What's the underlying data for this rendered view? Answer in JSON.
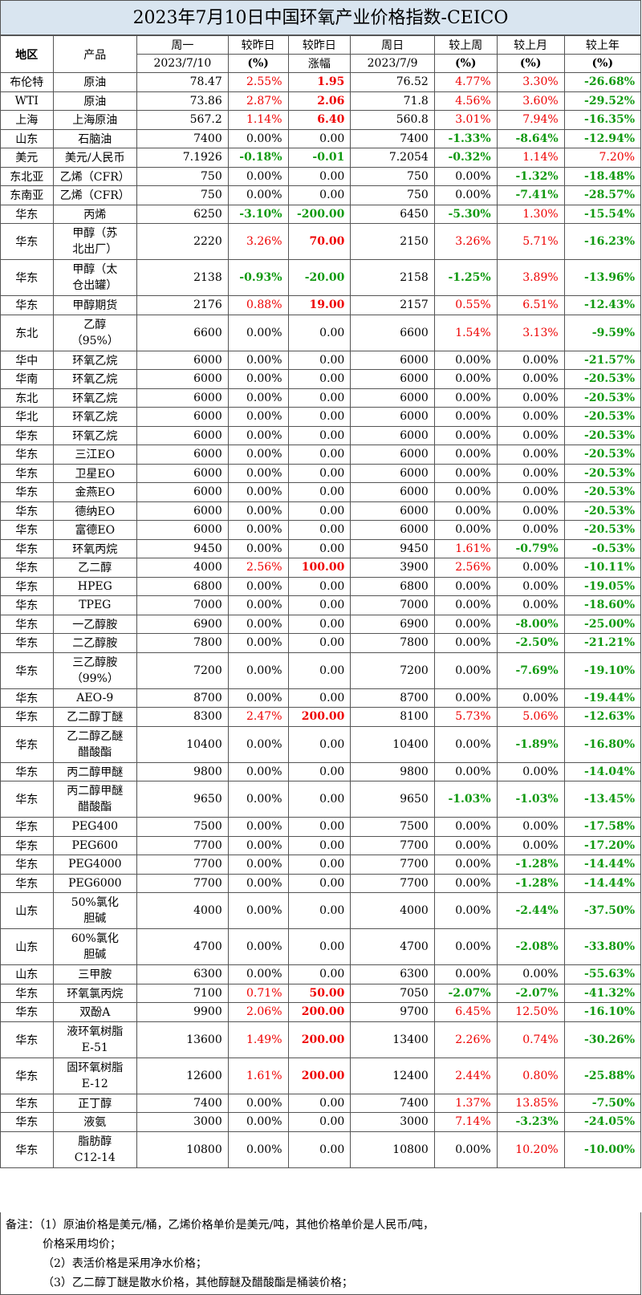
{
  "title": "2023年7月10日中国环氧产业价格指数-CEICO",
  "header": {
    "region": "地区",
    "product": "产品",
    "c1a": "周一",
    "c1b": "2023/7/10",
    "c2a": "较昨日",
    "c2b": "(%)",
    "c3a": "较昨日",
    "c3b": "涨幅",
    "c4a": "周日",
    "c4b": "2023/7/9",
    "c5a": "较上周",
    "c5b": "(%)",
    "c6a": "较上月",
    "c6b": "(%)",
    "c7a": "较上年",
    "c7b": "(%)"
  },
  "rows": [
    {
      "region": "布伦特",
      "product": "原油",
      "mon": "78.47",
      "dpct": "2.55%",
      "dchg": "1.95",
      "sun": "76.52",
      "wk": "4.77%",
      "mo": "3.30%",
      "yr": "-26.68%"
    },
    {
      "region": "WTI",
      "product": "原油",
      "mon": "73.86",
      "dpct": "2.87%",
      "dchg": "2.06",
      "sun": "71.8",
      "wk": "4.56%",
      "mo": "3.60%",
      "yr": "-29.52%"
    },
    {
      "region": "上海",
      "product": "上海原油",
      "mon": "567.2",
      "dpct": "1.14%",
      "dchg": "6.40",
      "sun": "560.8",
      "wk": "3.01%",
      "mo": "7.94%",
      "yr": "-16.35%"
    },
    {
      "region": "山东",
      "product": "石脑油",
      "mon": "7400",
      "dpct": "0.00%",
      "dchg": "0.00",
      "sun": "7400",
      "wk": "-1.33%",
      "mo": "-8.64%",
      "yr": "-12.94%"
    },
    {
      "region": "美元",
      "product": "美元/人民币",
      "mon": "7.1926",
      "dpct": "-0.18%",
      "dchg": "-0.01",
      "sun": "7.2054",
      "wk": "-0.32%",
      "mo": "1.14%",
      "yr": "7.20%"
    },
    {
      "region": "东北亚",
      "product": "乙烯（CFR）",
      "mon": "750",
      "dpct": "0.00%",
      "dchg": "0.00",
      "sun": "750",
      "wk": "0.00%",
      "mo": "-1.32%",
      "yr": "-18.48%"
    },
    {
      "region": "东南亚",
      "product": "乙烯（CFR）",
      "mon": "750",
      "dpct": "0.00%",
      "dchg": "0.00",
      "sun": "750",
      "wk": "0.00%",
      "mo": "-7.41%",
      "yr": "-28.57%"
    },
    {
      "region": "华东",
      "product": "丙烯",
      "mon": "6250",
      "dpct": "-3.10%",
      "dchg": "-200.00",
      "sun": "6450",
      "wk": "-5.30%",
      "mo": "1.30%",
      "yr": "-15.54%"
    },
    {
      "region": "华东",
      "product": "甲醇（苏北出厂）",
      "mon": "2220",
      "dpct": "3.26%",
      "dchg": "70.00",
      "sun": "2150",
      "wk": "3.26%",
      "mo": "5.71%",
      "yr": "-16.23%"
    },
    {
      "region": "华东",
      "product": "甲醇（太仓出罐）",
      "mon": "2138",
      "dpct": "-0.93%",
      "dchg": "-20.00",
      "sun": "2158",
      "wk": "-1.25%",
      "mo": "3.89%",
      "yr": "-13.96%"
    },
    {
      "region": "华东",
      "product": "甲醇期货",
      "mon": "2176",
      "dpct": "0.88%",
      "dchg": "19.00",
      "sun": "2157",
      "wk": "0.55%",
      "mo": "6.51%",
      "yr": "-12.43%"
    },
    {
      "region": "东北",
      "product": "乙醇（95%）",
      "mon": "6600",
      "dpct": "0.00%",
      "dchg": "0.00",
      "sun": "6600",
      "wk": "1.54%",
      "mo": "3.13%",
      "yr": "-9.59%"
    },
    {
      "region": "华中",
      "product": "环氧乙烷",
      "mon": "6000",
      "dpct": "0.00%",
      "dchg": "0.00",
      "sun": "6000",
      "wk": "0.00%",
      "mo": "0.00%",
      "yr": "-21.57%"
    },
    {
      "region": "华南",
      "product": "环氧乙烷",
      "mon": "6000",
      "dpct": "0.00%",
      "dchg": "0.00",
      "sun": "6000",
      "wk": "0.00%",
      "mo": "0.00%",
      "yr": "-20.53%"
    },
    {
      "region": "东北",
      "product": "环氧乙烷",
      "mon": "6000",
      "dpct": "0.00%",
      "dchg": "0.00",
      "sun": "6000",
      "wk": "0.00%",
      "mo": "0.00%",
      "yr": "-20.53%"
    },
    {
      "region": "华北",
      "product": "环氧乙烷",
      "mon": "6000",
      "dpct": "0.00%",
      "dchg": "0.00",
      "sun": "6000",
      "wk": "0.00%",
      "mo": "0.00%",
      "yr": "-20.53%"
    },
    {
      "region": "华东",
      "product": "环氧乙烷",
      "mon": "6000",
      "dpct": "0.00%",
      "dchg": "0.00",
      "sun": "6000",
      "wk": "0.00%",
      "mo": "0.00%",
      "yr": "-20.53%"
    },
    {
      "region": "华东",
      "product": "三江EO",
      "mon": "6000",
      "dpct": "0.00%",
      "dchg": "0.00",
      "sun": "6000",
      "wk": "0.00%",
      "mo": "0.00%",
      "yr": "-20.53%"
    },
    {
      "region": "华东",
      "product": "卫星EO",
      "mon": "6000",
      "dpct": "0.00%",
      "dchg": "0.00",
      "sun": "6000",
      "wk": "0.00%",
      "mo": "0.00%",
      "yr": "-20.53%"
    },
    {
      "region": "华东",
      "product": "金燕EO",
      "mon": "6000",
      "dpct": "0.00%",
      "dchg": "0.00",
      "sun": "6000",
      "wk": "0.00%",
      "mo": "0.00%",
      "yr": "-20.53%"
    },
    {
      "region": "华东",
      "product": "德纳EO",
      "mon": "6000",
      "dpct": "0.00%",
      "dchg": "0.00",
      "sun": "6000",
      "wk": "0.00%",
      "mo": "0.00%",
      "yr": "-20.53%"
    },
    {
      "region": "华东",
      "product": "富德EO",
      "mon": "6000",
      "dpct": "0.00%",
      "dchg": "0.00",
      "sun": "6000",
      "wk": "0.00%",
      "mo": "0.00%",
      "yr": "-20.53%"
    },
    {
      "region": "华东",
      "product": "环氧丙烷",
      "mon": "9450",
      "dpct": "0.00%",
      "dchg": "0.00",
      "sun": "9450",
      "wk": "1.61%",
      "mo": "-0.79%",
      "yr": "-0.53%"
    },
    {
      "region": "华东",
      "product": "乙二醇",
      "mon": "4000",
      "dpct": "2.56%",
      "dchg": "100.00",
      "sun": "3900",
      "wk": "2.56%",
      "mo": "0.00%",
      "yr": "-10.11%"
    },
    {
      "region": "华东",
      "product": "HPEG",
      "mon": "6800",
      "dpct": "0.00%",
      "dchg": "0.00",
      "sun": "6800",
      "wk": "0.00%",
      "mo": "0.00%",
      "yr": "-19.05%"
    },
    {
      "region": "华东",
      "product": "TPEG",
      "mon": "7000",
      "dpct": "0.00%",
      "dchg": "0.00",
      "sun": "7000",
      "wk": "0.00%",
      "mo": "0.00%",
      "yr": "-18.60%"
    },
    {
      "region": "华东",
      "product": "一乙醇胺",
      "mon": "6900",
      "dpct": "0.00%",
      "dchg": "0.00",
      "sun": "6900",
      "wk": "0.00%",
      "mo": "-8.00%",
      "yr": "-25.00%"
    },
    {
      "region": "华东",
      "product": "二乙醇胺",
      "mon": "7800",
      "dpct": "0.00%",
      "dchg": "0.00",
      "sun": "7800",
      "wk": "0.00%",
      "mo": "-2.50%",
      "yr": "-21.21%"
    },
    {
      "region": "华东",
      "product": "三乙醇胺（99%）",
      "mon": "7200",
      "dpct": "0.00%",
      "dchg": "0.00",
      "sun": "7200",
      "wk": "0.00%",
      "mo": "-7.69%",
      "yr": "-19.10%"
    },
    {
      "region": "华东",
      "product": "AEO-9",
      "mon": "8700",
      "dpct": "0.00%",
      "dchg": "0.00",
      "sun": "8700",
      "wk": "0.00%",
      "mo": "0.00%",
      "yr": "-19.44%"
    },
    {
      "region": "华东",
      "product": "乙二醇丁醚",
      "mon": "8300",
      "dpct": "2.47%",
      "dchg": "200.00",
      "sun": "8100",
      "wk": "5.73%",
      "mo": "5.06%",
      "yr": "-12.63%"
    },
    {
      "region": "华东",
      "product": "乙二醇乙醚醋酸酯",
      "mon": "10400",
      "dpct": "0.00%",
      "dchg": "0.00",
      "sun": "10400",
      "wk": "0.00%",
      "mo": "-1.89%",
      "yr": "-16.80%"
    },
    {
      "region": "华东",
      "product": "丙二醇甲醚",
      "mon": "9800",
      "dpct": "0.00%",
      "dchg": "0.00",
      "sun": "9800",
      "wk": "0.00%",
      "mo": "0.00%",
      "yr": "-14.04%"
    },
    {
      "region": "华东",
      "product": "丙二醇甲醚醋酸酯",
      "mon": "9650",
      "dpct": "0.00%",
      "dchg": "0.00",
      "sun": "9650",
      "wk": "-1.03%",
      "mo": "-1.03%",
      "yr": "-13.45%"
    },
    {
      "region": "华东",
      "product": "PEG400",
      "mon": "7500",
      "dpct": "0.00%",
      "dchg": "0.00",
      "sun": "7500",
      "wk": "0.00%",
      "mo": "0.00%",
      "yr": "-17.58%"
    },
    {
      "region": "华东",
      "product": "PEG600",
      "mon": "7700",
      "dpct": "0.00%",
      "dchg": "0.00",
      "sun": "7700",
      "wk": "0.00%",
      "mo": "0.00%",
      "yr": "-17.20%"
    },
    {
      "region": "华东",
      "product": "PEG4000",
      "mon": "7700",
      "dpct": "0.00%",
      "dchg": "0.00",
      "sun": "7700",
      "wk": "0.00%",
      "mo": "-1.28%",
      "yr": "-14.44%"
    },
    {
      "region": "华东",
      "product": "PEG6000",
      "mon": "7700",
      "dpct": "0.00%",
      "dchg": "0.00",
      "sun": "7700",
      "wk": "0.00%",
      "mo": "-1.28%",
      "yr": "-14.44%"
    },
    {
      "region": "山东",
      "product": "50%氯化胆碱",
      "mon": "4000",
      "dpct": "0.00%",
      "dchg": "0.00",
      "sun": "4000",
      "wk": "0.00%",
      "mo": "-2.44%",
      "yr": "-37.50%"
    },
    {
      "region": "山东",
      "product": "60%氯化胆碱",
      "mon": "4700",
      "dpct": "0.00%",
      "dchg": "0.00",
      "sun": "4700",
      "wk": "0.00%",
      "mo": "-2.08%",
      "yr": "-33.80%"
    },
    {
      "region": "山东",
      "product": "三甲胺",
      "mon": "6300",
      "dpct": "0.00%",
      "dchg": "0.00",
      "sun": "6300",
      "wk": "0.00%",
      "mo": "0.00%",
      "yr": "-55.63%"
    },
    {
      "region": "华东",
      "product": "环氧氯丙烷",
      "mon": "7100",
      "dpct": "0.71%",
      "dchg": "50.00",
      "sun": "7050",
      "wk": "-2.07%",
      "mo": "-2.07%",
      "yr": "-41.32%"
    },
    {
      "region": "华东",
      "product": "双酚A",
      "mon": "9900",
      "dpct": "2.06%",
      "dchg": "200.00",
      "sun": "9700",
      "wk": "6.45%",
      "mo": "12.50%",
      "yr": "-16.10%"
    },
    {
      "region": "华东",
      "product": "液环氧树脂E-51",
      "mon": "13600",
      "dpct": "1.49%",
      "dchg": "200.00",
      "sun": "13400",
      "wk": "2.26%",
      "mo": "0.74%",
      "yr": "-30.26%"
    },
    {
      "region": "华东",
      "product": "固环氧树脂E-12",
      "mon": "12600",
      "dpct": "1.61%",
      "dchg": "200.00",
      "sun": "12400",
      "wk": "2.44%",
      "mo": "0.80%",
      "yr": "-25.88%"
    },
    {
      "region": "华东",
      "product": "正丁醇",
      "mon": "7400",
      "dpct": "0.00%",
      "dchg": "0.00",
      "sun": "7400",
      "wk": "1.37%",
      "mo": "13.85%",
      "yr": "-7.50%"
    },
    {
      "region": "华东",
      "product": "液氨",
      "mon": "3000",
      "dpct": "0.00%",
      "dchg": "0.00",
      "sun": "3000",
      "wk": "7.14%",
      "mo": "-3.23%",
      "yr": "-24.05%"
    },
    {
      "region": "华东",
      "product": "脂肪醇C12-14",
      "mon": "10800",
      "dpct": "0.00%",
      "dchg": "0.00",
      "sun": "10800",
      "wk": "0.00%",
      "mo": "10.20%",
      "yr": "-10.00%"
    }
  ],
  "notes": {
    "line1": "备注：（1）原油价格是美元/桶，乙烯价格单价是美元/吨，其他价格单价是人民币/吨，",
    "line1b": "价格采用均价；",
    "line2": "（2）表活价格是采用净水价格；",
    "line3": "（3）乙二醇丁醚是散水价格，其他醇醚及醋酸酯是桶装价格；"
  }
}
